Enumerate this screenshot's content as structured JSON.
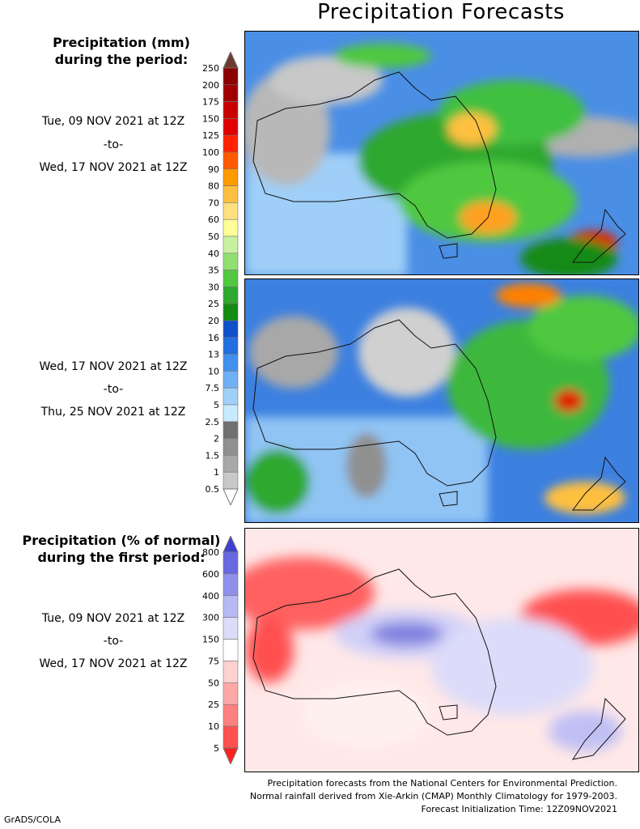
{
  "title": "Precipitation Forecasts",
  "period1": {
    "heading_line1": "Precipitation (mm)",
    "heading_line2": "during the period:",
    "start": "Tue, 09 NOV 2021 at 12Z",
    "sep": "-to-",
    "end": "Wed, 17 NOV 2021 at 12Z"
  },
  "period2": {
    "start": "Wed, 17 NOV 2021 at 12Z",
    "sep": "-to-",
    "end": "Thu, 25 NOV 2021 at 12Z"
  },
  "period3": {
    "heading_line1": "Precipitation (% of normal)",
    "heading_line2": "during the first period:",
    "start": "Tue, 09 NOV 2021 at 12Z",
    "sep": "-to-",
    "end": "Wed, 17 NOV 2021 at 12Z"
  },
  "footer": {
    "line1": "Precipitation forecasts from the National Centers for Environmental Prediction.",
    "line2": "Normal rainfall derived from Xie-Arkin (CMAP) Monthly Climatology for 1979-2003.",
    "line3": "Forecast Initialization Time: 12Z09NOV2021"
  },
  "credit": "GrADS/COLA",
  "chart_data": [
    {
      "type": "heatmap",
      "title": "Precipitation (mm)",
      "colorbar_ticks": [
        "250",
        "200",
        "175",
        "150",
        "125",
        "100",
        "90",
        "80",
        "70",
        "60",
        "50",
        "40",
        "35",
        "30",
        "25",
        "20",
        "16",
        "13",
        "10",
        "7.5",
        "5",
        "2.5",
        "2",
        "1.5",
        "1",
        "0.5"
      ],
      "colorbar_colors": [
        "#6e3a2e",
        "#8b0000",
        "#a00000",
        "#c80000",
        "#e00000",
        "#ff2000",
        "#ff5a00",
        "#ff9a00",
        "#ffc040",
        "#ffe080",
        "#ffff99",
        "#c8f0a0",
        "#90e070",
        "#50c840",
        "#2ea82e",
        "#138a13",
        "#1050c8",
        "#2070e0",
        "#4090ee",
        "#70b0f5",
        "#a0d0fa",
        "#c8eaff",
        "#707070",
        "#909090",
        "#a8a8a8",
        "#c8c8c8",
        "#ffffff"
      ],
      "colorbar_range": [
        0.5,
        250
      ]
    },
    {
      "type": "heatmap",
      "title": "Precipitation (% of normal)",
      "colorbar_ticks": [
        "800",
        "600",
        "400",
        "300",
        "150",
        "75",
        "50",
        "25",
        "10",
        "5"
      ],
      "colorbar_colors": [
        "#4040d0",
        "#6868e0",
        "#9090ec",
        "#b8b8f4",
        "#dcdcfa",
        "#ffffff",
        "#ffd0d0",
        "#ffa8a8",
        "#ff8080",
        "#ff5050",
        "#ff2020"
      ],
      "colorbar_range": [
        5,
        800
      ]
    }
  ]
}
